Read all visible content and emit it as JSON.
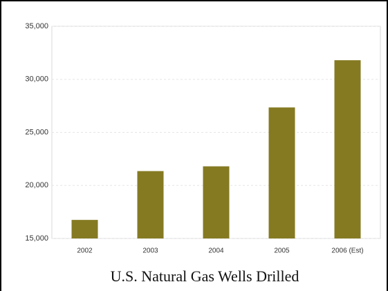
{
  "chart_data": {
    "type": "bar",
    "title": "U.S. Natural Gas Wells Drilled",
    "categories": [
      "2002",
      "2003",
      "2004",
      "2005",
      "2006 (Est)"
    ],
    "values": [
      16750,
      21350,
      21800,
      27350,
      31800
    ],
    "color": "#857a22",
    "ylim": [
      15000,
      35000
    ],
    "yticks": [
      {
        "value": 15000,
        "label": "15,000"
      },
      {
        "value": 20000,
        "label": "20,000"
      },
      {
        "value": 25000,
        "label": "25,000"
      },
      {
        "value": 30000,
        "label": "30,000"
      },
      {
        "value": 35000,
        "label": "35,000"
      }
    ],
    "grid": true
  }
}
